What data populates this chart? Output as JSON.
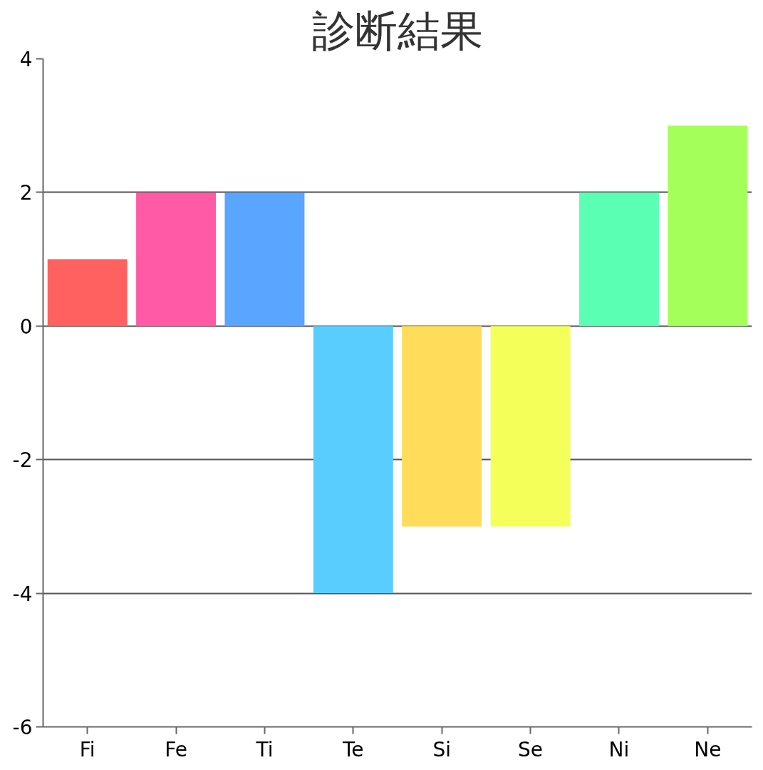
{
  "chart_data": {
    "type": "bar",
    "title": "診断結果",
    "categories": [
      "Fi",
      "Fe",
      "Ti",
      "Te",
      "Si",
      "Se",
      "Ni",
      "Ne"
    ],
    "values": [
      1,
      2,
      2,
      -4,
      -3,
      -3,
      2,
      3
    ],
    "colors": [
      "#ff6060",
      "#ff5aa5",
      "#5aa5ff",
      "#5acdff",
      "#ffdc5a",
      "#f5ff5a",
      "#5affb4",
      "#a5ff5a"
    ],
    "ylim": [
      -6,
      4
    ],
    "yticks": [
      -6,
      -4,
      -2,
      0,
      2,
      4
    ],
    "grid": "y"
  }
}
